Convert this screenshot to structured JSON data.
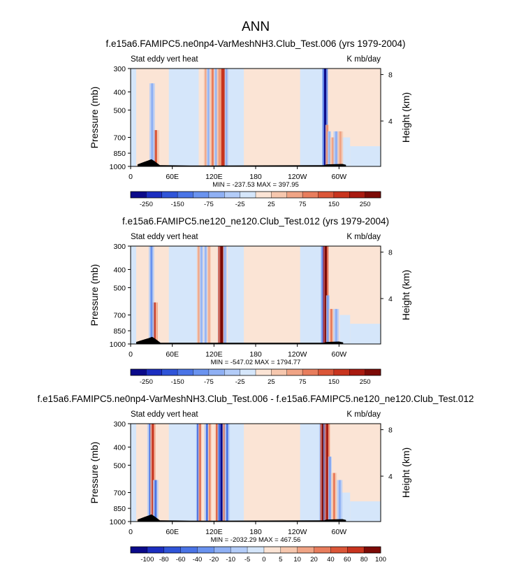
{
  "title": "ANN",
  "chart_data": [
    {
      "type": "heatmap",
      "title": "f.e15a6.FAMIPC5.ne0np4-VarMeshNH3.Club_Test.006 (yrs 1979-2004)",
      "left_label": "Stat eddy vert heat",
      "right_label": "K mb/day",
      "ylabel": "Pressure (mb)",
      "y2label": "Height (km)",
      "x_ticks": [
        "0",
        "60E",
        "120E",
        "180",
        "120W",
        "60W"
      ],
      "x_tick_lons": [
        0,
        60,
        120,
        180,
        240,
        300
      ],
      "xlim": [
        0,
        360
      ],
      "y_ticks": [
        "300",
        "400",
        "500",
        "700",
        "850",
        "1000"
      ],
      "y_tick_values": [
        300,
        400,
        500,
        700,
        850,
        1000
      ],
      "ylim": [
        300,
        1000
      ],
      "y2_ticks": [
        "8",
        "4"
      ],
      "y2_tick_values": [
        8,
        4
      ],
      "stats": "MIN = -237.53  MAX = 397.95",
      "colorbar_labels": [
        "-250",
        "-150",
        "-75",
        "-25",
        "25",
        "75",
        "150",
        "250"
      ],
      "colorbar_levels": [
        -250,
        -200,
        -150,
        -100,
        -75,
        -50,
        -25,
        -10,
        10,
        25,
        50,
        75,
        100,
        150,
        200,
        250
      ],
      "features": [
        {
          "lon": 36,
          "sign": 1,
          "strength": 0.55,
          "width": 4,
          "top": 640
        },
        {
          "lon": 31,
          "sign": -1,
          "strength": 0.35,
          "width": 3,
          "top": 360
        },
        {
          "lon": 108,
          "sign": 1,
          "strength": 0.3,
          "width": 2,
          "top": 300
        },
        {
          "lon": 112,
          "sign": -1,
          "strength": 0.35,
          "width": 2,
          "top": 300
        },
        {
          "lon": 118,
          "sign": 1,
          "strength": 0.45,
          "width": 3,
          "top": 300
        },
        {
          "lon": 123,
          "sign": -1,
          "strength": 0.3,
          "width": 2,
          "top": 300
        },
        {
          "lon": 128,
          "sign": 1,
          "strength": 0.4,
          "width": 3,
          "top": 300
        },
        {
          "lon": 133,
          "sign": 1,
          "strength": 0.75,
          "width": 5,
          "top": 300
        },
        {
          "lon": 138,
          "sign": -1,
          "strength": 0.35,
          "width": 2,
          "top": 300
        },
        {
          "lon": 280,
          "sign": -1,
          "strength": 0.95,
          "width": 3,
          "top": 300
        },
        {
          "lon": 283,
          "sign": 1,
          "strength": 0.45,
          "width": 2,
          "top": 600
        },
        {
          "lon": 286,
          "sign": -1,
          "strength": 0.35,
          "width": 2,
          "top": 650
        },
        {
          "lon": 291,
          "sign": 1,
          "strength": 0.35,
          "width": 3,
          "top": 700
        },
        {
          "lon": 296,
          "sign": -1,
          "strength": 0.3,
          "width": 3,
          "top": 650
        },
        {
          "lon": 302,
          "sign": 1,
          "strength": 0.25,
          "width": 3,
          "top": 650
        }
      ],
      "terrain": [
        [
          10,
          975
        ],
        [
          15,
          960
        ],
        [
          20,
          945
        ],
        [
          25,
          930
        ],
        [
          30,
          915
        ],
        [
          34,
          935
        ],
        [
          38,
          960
        ],
        [
          42,
          985
        ],
        [
          86,
          990
        ],
        [
          91,
          990
        ],
        [
          120,
          990
        ],
        [
          124,
          990
        ],
        [
          279,
          985
        ],
        [
          282,
          975
        ],
        [
          305,
          970
        ],
        [
          310,
          980
        ]
      ]
    },
    {
      "type": "heatmap",
      "title": "f.e15a6.FAMIPC5.ne120_ne120.Club_Test.012 (yrs 1979-2004)",
      "left_label": "Stat eddy vert heat",
      "right_label": "K mb/day",
      "ylabel": "Pressure (mb)",
      "y2label": "Height (km)",
      "x_ticks": [
        "0",
        "60E",
        "120E",
        "180",
        "120W",
        "60W"
      ],
      "x_tick_lons": [
        0,
        60,
        120,
        180,
        240,
        300
      ],
      "xlim": [
        0,
        360
      ],
      "y_ticks": [
        "300",
        "400",
        "500",
        "700",
        "850",
        "1000"
      ],
      "y_tick_values": [
        300,
        400,
        500,
        700,
        850,
        1000
      ],
      "ylim": [
        300,
        1000
      ],
      "y2_ticks": [
        "8",
        "4"
      ],
      "y2_tick_values": [
        8,
        4
      ],
      "stats": "MIN = -547.02  MAX = 1794.77",
      "colorbar_labels": [
        "-250",
        "-150",
        "-75",
        "-25",
        "25",
        "75",
        "150",
        "250"
      ],
      "colorbar_levels": [
        -250,
        -200,
        -150,
        -100,
        -75,
        -50,
        -25,
        -10,
        10,
        25,
        50,
        75,
        100,
        150,
        200,
        250
      ],
      "features": [
        {
          "lon": 34,
          "sign": 1,
          "strength": 0.7,
          "width": 4,
          "top": 600
        },
        {
          "lon": 30,
          "sign": -1,
          "strength": 0.4,
          "width": 3,
          "top": 300
        },
        {
          "lon": 98,
          "sign": 1,
          "strength": 0.3,
          "width": 2,
          "top": 300
        },
        {
          "lon": 102,
          "sign": -1,
          "strength": 0.35,
          "width": 2,
          "top": 300
        },
        {
          "lon": 108,
          "sign": -1,
          "strength": 0.3,
          "width": 2,
          "top": 300
        },
        {
          "lon": 113,
          "sign": 1,
          "strength": 0.35,
          "width": 2,
          "top": 300
        },
        {
          "lon": 128,
          "sign": -1,
          "strength": 0.4,
          "width": 2,
          "top": 300
        },
        {
          "lon": 131,
          "sign": 1,
          "strength": 0.95,
          "width": 4,
          "top": 300
        },
        {
          "lon": 136,
          "sign": -1,
          "strength": 0.3,
          "width": 2,
          "top": 300
        },
        {
          "lon": 278,
          "sign": -1,
          "strength": 0.9,
          "width": 3,
          "top": 300
        },
        {
          "lon": 281,
          "sign": 1,
          "strength": 0.95,
          "width": 3,
          "top": 300
        },
        {
          "lon": 284,
          "sign": -1,
          "strength": 0.45,
          "width": 2,
          "top": 550
        },
        {
          "lon": 289,
          "sign": 1,
          "strength": 0.4,
          "width": 3,
          "top": 650
        },
        {
          "lon": 296,
          "sign": -1,
          "strength": 0.3,
          "width": 3,
          "top": 650
        }
      ],
      "terrain": [
        [
          8,
          975
        ],
        [
          14,
          960
        ],
        [
          20,
          945
        ],
        [
          26,
          930
        ],
        [
          31,
          915
        ],
        [
          35,
          935
        ],
        [
          39,
          960
        ],
        [
          43,
          985
        ],
        [
          278,
          985
        ],
        [
          282,
          975
        ],
        [
          300,
          970
        ],
        [
          306,
          980
        ]
      ]
    },
    {
      "type": "heatmap",
      "title": "f.e15a6.FAMIPC5.ne0np4-VarMeshNH3.Club_Test.006 - f.e15a6.FAMIPC5.ne120_ne120.Club_Test.012",
      "left_label": "Stat eddy vert heat",
      "right_label": "K mb/day",
      "ylabel": "Pressure (mb)",
      "y2label": "Height (km)",
      "x_ticks": [
        "0",
        "60E",
        "120E",
        "180",
        "120W",
        "60W"
      ],
      "x_tick_lons": [
        0,
        60,
        120,
        180,
        240,
        300
      ],
      "xlim": [
        0,
        360
      ],
      "y_ticks": [
        "300",
        "400",
        "500",
        "700",
        "850",
        "1000"
      ],
      "y_tick_values": [
        300,
        400,
        500,
        700,
        850,
        1000
      ],
      "ylim": [
        300,
        1000
      ],
      "y2_ticks": [
        "8",
        "4"
      ],
      "y2_tick_values": [
        8,
        4
      ],
      "stats": "MIN = -2032.29  MAX = 467.56",
      "colorbar_labels": [
        "-100",
        "-80",
        "-60",
        "-40",
        "-20",
        "-10",
        "-5",
        "0",
        "5",
        "10",
        "20",
        "40",
        "60",
        "80",
        "100"
      ],
      "colorbar_levels": [
        -100,
        -80,
        -60,
        -40,
        -20,
        -10,
        -5,
        0,
        5,
        10,
        20,
        40,
        60,
        80,
        100
      ],
      "features": [
        {
          "lon": 28,
          "sign": -1,
          "strength": 0.6,
          "width": 3,
          "top": 300
        },
        {
          "lon": 32,
          "sign": 1,
          "strength": 0.7,
          "width": 3,
          "top": 300
        },
        {
          "lon": 36,
          "sign": -1,
          "strength": 0.5,
          "width": 3,
          "top": 600
        },
        {
          "lon": 97,
          "sign": -1,
          "strength": 0.7,
          "width": 2,
          "top": 300
        },
        {
          "lon": 100,
          "sign": 1,
          "strength": 0.5,
          "width": 2,
          "top": 300
        },
        {
          "lon": 110,
          "sign": -1,
          "strength": 0.6,
          "width": 3,
          "top": 300
        },
        {
          "lon": 114,
          "sign": 1,
          "strength": 0.45,
          "width": 2,
          "top": 300
        },
        {
          "lon": 124,
          "sign": 1,
          "strength": 0.6,
          "width": 2,
          "top": 300
        },
        {
          "lon": 128,
          "sign": -1,
          "strength": 0.85,
          "width": 2,
          "top": 300
        },
        {
          "lon": 131,
          "sign": -1,
          "strength": 0.95,
          "width": 3,
          "top": 300
        },
        {
          "lon": 135,
          "sign": 1,
          "strength": 0.6,
          "width": 2,
          "top": 300
        },
        {
          "lon": 139,
          "sign": -1,
          "strength": 0.6,
          "width": 3,
          "top": 300
        },
        {
          "lon": 274,
          "sign": -1,
          "strength": 0.5,
          "width": 2,
          "top": 300
        },
        {
          "lon": 277,
          "sign": 1,
          "strength": 0.95,
          "width": 3,
          "top": 300
        },
        {
          "lon": 280,
          "sign": -1,
          "strength": 0.8,
          "width": 2,
          "top": 300
        },
        {
          "lon": 283,
          "sign": 1,
          "strength": 0.9,
          "width": 3,
          "top": 300
        },
        {
          "lon": 287,
          "sign": -1,
          "strength": 0.45,
          "width": 2,
          "top": 450
        },
        {
          "lon": 293,
          "sign": 1,
          "strength": 0.4,
          "width": 3,
          "top": 550
        },
        {
          "lon": 301,
          "sign": -1,
          "strength": 0.3,
          "width": 3,
          "top": 600
        }
      ],
      "terrain": [
        [
          10,
          975
        ],
        [
          15,
          960
        ],
        [
          20,
          945
        ],
        [
          25,
          930
        ],
        [
          30,
          915
        ],
        [
          34,
          935
        ],
        [
          38,
          960
        ],
        [
          42,
          985
        ],
        [
          86,
          990
        ],
        [
          91,
          990
        ],
        [
          120,
          990
        ],
        [
          124,
          990
        ],
        [
          279,
          985
        ],
        [
          282,
          975
        ],
        [
          305,
          970
        ],
        [
          310,
          980
        ]
      ]
    }
  ]
}
